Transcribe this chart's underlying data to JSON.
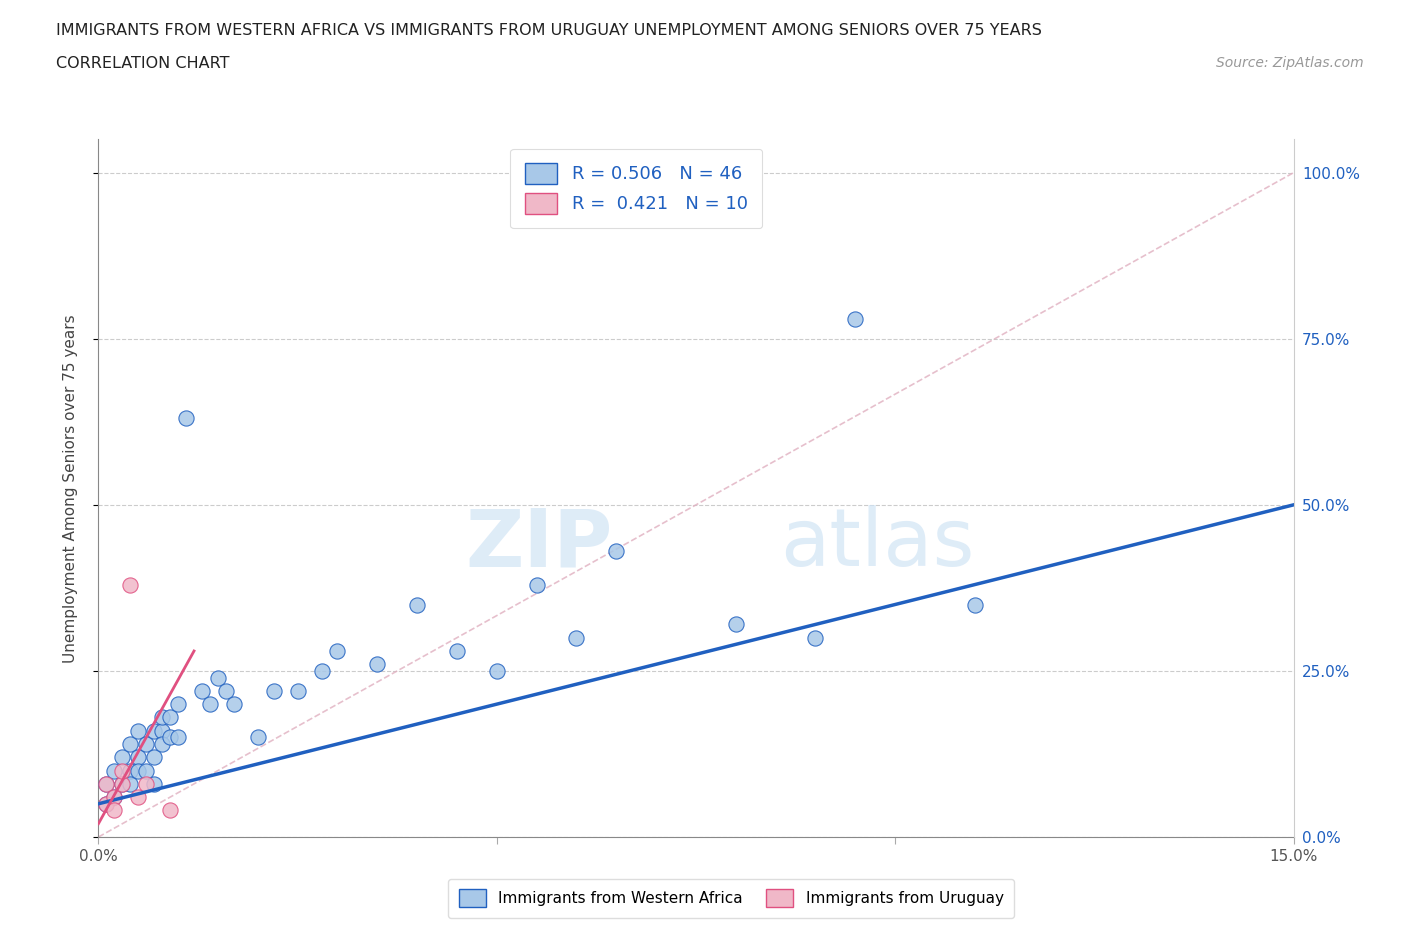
{
  "title_line1": "IMMIGRANTS FROM WESTERN AFRICA VS IMMIGRANTS FROM URUGUAY UNEMPLOYMENT AMONG SENIORS OVER 75 YEARS",
  "title_line2": "CORRELATION CHART",
  "source": "Source: ZipAtlas.com",
  "ylabel": "Unemployment Among Seniors over 75 years",
  "xlim": [
    0.0,
    0.15
  ],
  "ylim": [
    0.0,
    1.05
  ],
  "yticks": [
    0.0,
    0.25,
    0.5,
    0.75,
    1.0
  ],
  "ytick_labels": [
    "0.0%",
    "25.0%",
    "50.0%",
    "75.0%",
    "100.0%"
  ],
  "western_africa_R": 0.506,
  "western_africa_N": 46,
  "uruguay_R": 0.421,
  "uruguay_N": 10,
  "blue_dot_color": "#a8c8e8",
  "pink_dot_color": "#f0b8c8",
  "blue_line_color": "#2060c0",
  "pink_line_color": "#e05080",
  "diag_line_color": "#e0b0c0",
  "watermark_zip": "ZIP",
  "watermark_atlas": "atlas",
  "legend_label1": "Immigrants from Western Africa",
  "legend_label2": "Immigrants from Uruguay",
  "blue_line_x0": 0.0,
  "blue_line_y0": 0.05,
  "blue_line_x1": 0.15,
  "blue_line_y1": 0.5,
  "pink_line_x0": 0.0,
  "pink_line_y0": 0.02,
  "pink_line_x1": 0.012,
  "pink_line_y1": 0.28,
  "western_africa_x": [
    0.001,
    0.001,
    0.002,
    0.002,
    0.003,
    0.003,
    0.004,
    0.004,
    0.004,
    0.005,
    0.005,
    0.005,
    0.006,
    0.006,
    0.007,
    0.007,
    0.007,
    0.008,
    0.008,
    0.008,
    0.009,
    0.009,
    0.01,
    0.01,
    0.011,
    0.013,
    0.014,
    0.015,
    0.016,
    0.017,
    0.02,
    0.022,
    0.025,
    0.028,
    0.03,
    0.035,
    0.04,
    0.045,
    0.05,
    0.055,
    0.06,
    0.065,
    0.08,
    0.09,
    0.095,
    0.11
  ],
  "western_africa_y": [
    0.05,
    0.08,
    0.06,
    0.1,
    0.08,
    0.12,
    0.1,
    0.14,
    0.08,
    0.12,
    0.16,
    0.1,
    0.14,
    0.1,
    0.16,
    0.12,
    0.08,
    0.16,
    0.18,
    0.14,
    0.18,
    0.15,
    0.2,
    0.15,
    0.63,
    0.22,
    0.2,
    0.24,
    0.22,
    0.2,
    0.15,
    0.22,
    0.22,
    0.25,
    0.28,
    0.26,
    0.35,
    0.28,
    0.25,
    0.38,
    0.3,
    0.43,
    0.32,
    0.3,
    0.78,
    0.35
  ],
  "uruguay_x": [
    0.001,
    0.001,
    0.002,
    0.002,
    0.003,
    0.003,
    0.004,
    0.005,
    0.006,
    0.009
  ],
  "uruguay_y": [
    0.05,
    0.08,
    0.06,
    0.04,
    0.08,
    0.1,
    0.38,
    0.06,
    0.08,
    0.04
  ]
}
